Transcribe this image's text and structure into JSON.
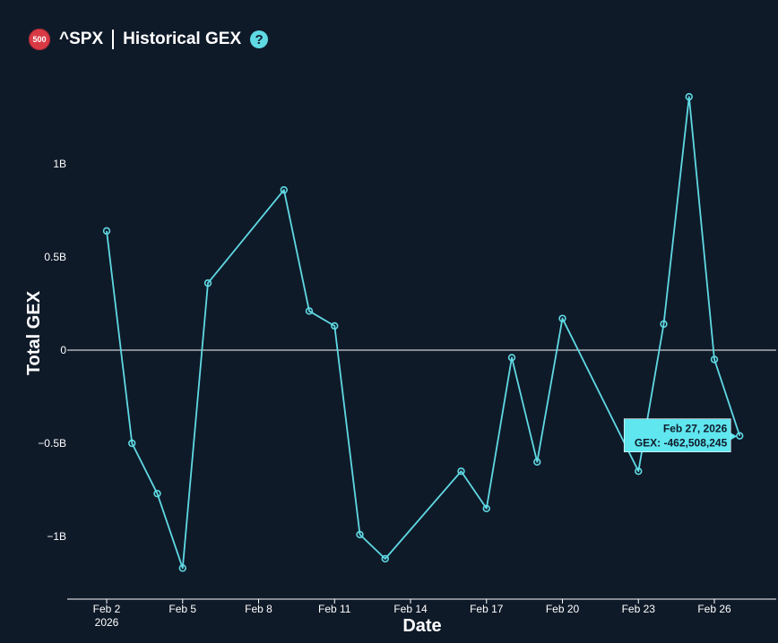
{
  "header": {
    "badge_text": "500",
    "symbol": "^SPX",
    "title": "Historical GEX",
    "help_glyph": "?"
  },
  "colors": {
    "background": "#0f1a29",
    "line": "#5fd9e3",
    "badge": "#d93b46",
    "tooltip_bg": "#5fe6ef"
  },
  "chart_data": {
    "type": "line",
    "title": "^SPX | Historical GEX",
    "xlabel": "Date",
    "ylabel": "Total GEX",
    "ylim": [
      -1.33,
      1.53
    ],
    "x_ticks": [
      {
        "label": "Feb 2",
        "sublabel": "2026",
        "day": 2
      },
      {
        "label": "Feb 5",
        "day": 5
      },
      {
        "label": "Feb 8",
        "day": 8
      },
      {
        "label": "Feb 11",
        "day": 11
      },
      {
        "label": "Feb 14",
        "day": 14
      },
      {
        "label": "Feb 17",
        "day": 17
      },
      {
        "label": "Feb 20",
        "day": 20
      },
      {
        "label": "Feb 23",
        "day": 23
      },
      {
        "label": "Feb 26",
        "day": 26
      }
    ],
    "y_ticks": [
      {
        "label": "1B",
        "value": 1
      },
      {
        "label": "0.5B",
        "value": 0.5
      },
      {
        "label": "0",
        "value": 0
      },
      {
        "label": "−0.5B",
        "value": -0.5
      },
      {
        "label": "−1B",
        "value": -1
      }
    ],
    "series": [
      {
        "name": "GEX",
        "unit": "billions",
        "points": [
          {
            "date": "Feb 2, 2026",
            "day": 2,
            "value": 0.64
          },
          {
            "date": "Feb 3, 2026",
            "day": 3,
            "value": -0.5
          },
          {
            "date": "Feb 4, 2026",
            "day": 4,
            "value": -0.77
          },
          {
            "date": "Feb 5, 2026",
            "day": 5,
            "value": -1.17
          },
          {
            "date": "Feb 6, 2026",
            "day": 6,
            "value": 0.36
          },
          {
            "date": "Feb 9, 2026",
            "day": 9,
            "value": 0.86
          },
          {
            "date": "Feb 10, 2026",
            "day": 10,
            "value": 0.21
          },
          {
            "date": "Feb 11, 2026",
            "day": 11,
            "value": 0.13
          },
          {
            "date": "Feb 12, 2026",
            "day": 12,
            "value": -0.99
          },
          {
            "date": "Feb 13, 2026",
            "day": 13,
            "value": -1.12
          },
          {
            "date": "Feb 16, 2026",
            "day": 16,
            "value": -0.65
          },
          {
            "date": "Feb 17, 2026",
            "day": 17,
            "value": -0.85
          },
          {
            "date": "Feb 18, 2026",
            "day": 18,
            "value": -0.04
          },
          {
            "date": "Feb 19, 2026",
            "day": 19,
            "value": -0.6
          },
          {
            "date": "Feb 20, 2026",
            "day": 20,
            "value": 0.17
          },
          {
            "date": "Feb 23, 2026",
            "day": 23,
            "value": -0.65
          },
          {
            "date": "Feb 24, 2026",
            "day": 24,
            "value": 0.14
          },
          {
            "date": "Feb 25, 2026",
            "day": 25,
            "value": 1.36
          },
          {
            "date": "Feb 26, 2026",
            "day": 26,
            "value": -0.05
          },
          {
            "date": "Feb 27, 2026",
            "day": 27,
            "value": -0.46
          }
        ]
      }
    ],
    "tooltip": {
      "day": 27,
      "value": -0.4625,
      "line1": "Feb 27, 2026",
      "line2": "GEX: -462,508,245"
    }
  }
}
